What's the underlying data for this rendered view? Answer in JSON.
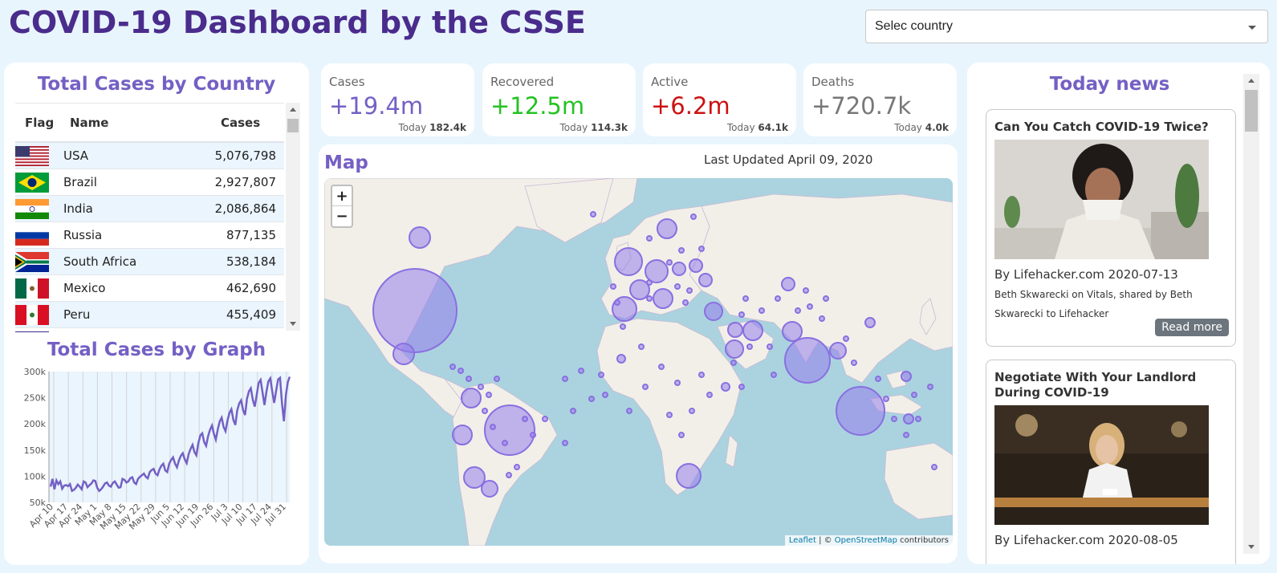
{
  "header": {
    "title": "COVID-19 Dashboard by the CSSE",
    "country_select": {
      "value": "Selec country",
      "caret_icon": "chevron-down-icon"
    }
  },
  "colors": {
    "title": "#4a2c8c",
    "accent": "#7460c4",
    "recovered": "#23c223",
    "active": "#cc1111",
    "deaths": "#777777",
    "bubble": "#9b86e6"
  },
  "country_table": {
    "title": "Total Cases by Country",
    "columns": {
      "flag": "Flag",
      "name": "Name",
      "cases": "Cases"
    },
    "rows": [
      {
        "flag": "flag-usa",
        "name": "USA",
        "cases": "5,076,798"
      },
      {
        "flag": "flag-brazil",
        "name": "Brazil",
        "cases": "2,927,807"
      },
      {
        "flag": "flag-india",
        "name": "India",
        "cases": "2,086,864"
      },
      {
        "flag": "flag-russia",
        "name": "Russia",
        "cases": "877,135"
      },
      {
        "flag": "flag-south-africa",
        "name": "South Africa",
        "cases": "538,184"
      },
      {
        "flag": "flag-mexico",
        "name": "Mexico",
        "cases": "462,690"
      },
      {
        "flag": "flag-peru",
        "name": "Peru",
        "cases": "455,409"
      }
    ]
  },
  "graph": {
    "title": "Total Cases by Graph"
  },
  "chart_data": {
    "type": "line",
    "title": "Total Cases by Graph",
    "x_ticks": [
      "Apr 10",
      "Apr 17",
      "Apr 24",
      "May 1",
      "May 8",
      "May 15",
      "May 22",
      "May 29",
      "Jun 5",
      "Jun 12",
      "Jun 19",
      "Jun 26",
      "Jul 3",
      "Jul 10",
      "Jul 17",
      "Jul 24",
      "Jul 31"
    ],
    "y_ticks": [
      "300k",
      "250k",
      "200k",
      "150k",
      "100k",
      "50k"
    ],
    "ylim": [
      50000,
      300000
    ],
    "grid": "vertical",
    "series": [
      {
        "values": [
          80000,
          95000,
          75000,
          92000,
          85000,
          90000,
          76000,
          82000,
          83000,
          81000,
          85000,
          72000,
          74000,
          78000,
          84000,
          80000,
          75000,
          90000,
          88000,
          79000,
          83000,
          86000,
          92000,
          91000,
          78000,
          72000,
          75000,
          80000,
          86000,
          88000,
          82000,
          80000,
          87000,
          90000,
          84000,
          78000,
          79000,
          95000,
          93000,
          88000,
          90000,
          96000,
          98000,
          88000,
          85000,
          95000,
          99000,
          102000,
          105000,
          99000,
          96000,
          108000,
          112000,
          114000,
          105000,
          102000,
          113000,
          120000,
          124000,
          111000,
          108000,
          124000,
          131000,
          136000,
          124000,
          117000,
          130000,
          139000,
          144000,
          132000,
          125000,
          142000,
          152000,
          160000,
          146000,
          140000,
          163000,
          178000,
          182000,
          165000,
          158000,
          176000,
          189000,
          197000,
          181000,
          170000,
          190000,
          205000,
          212000,
          194000,
          186000,
          207000,
          221000,
          228000,
          208000,
          198000,
          226000,
          239000,
          245000,
          226000,
          217000,
          248000,
          262000,
          268000,
          246000,
          233000,
          255000,
          278000,
          284000,
          260000,
          236000,
          261000,
          281000,
          287000,
          262000,
          240000,
          263000,
          285000,
          288000,
          240000,
          205000,
          255000,
          280000,
          290000
        ]
      }
    ]
  },
  "stats": [
    {
      "label": "Cases",
      "value": "+19.4m",
      "today_label": "Today",
      "today_value": "182.4k",
      "color": "#7460c4"
    },
    {
      "label": "Recovered",
      "value": "+12.5m",
      "today_label": "Today",
      "today_value": "114.3k",
      "color": "#23c223"
    },
    {
      "label": "Active",
      "value": "+6.2m",
      "today_label": "Today",
      "today_value": "64.1k",
      "color": "#cc1111"
    },
    {
      "label": "Deaths",
      "value": "+720.7k",
      "today_label": "Today",
      "today_value": "4.0k",
      "color": "#777777"
    }
  ],
  "map": {
    "title": "Map",
    "last_updated": "Last Updated April 09, 2020",
    "zoom_in": "+",
    "zoom_out": "−",
    "attribution": {
      "leaflet": "Leaflet",
      "separator": " | © ",
      "osm": "OpenStreetMap",
      "suffix": " contributors"
    }
  },
  "news": {
    "title": "Today news",
    "items": [
      {
        "title": "Can You Catch COVID-19 Twice?",
        "image": "woman-sneezing-photo",
        "source": "By Lifehacker.com 2020-07-13",
        "description": "Beth Skwarecki on Vitals, shared by Beth Skwarecki to Lifehacker",
        "read_more": "Read more"
      },
      {
        "title": "Negotiate With Your Landlord During COVID-19",
        "image": "woman-on-phone-photo",
        "source": "By Lifehacker.com 2020-08-05",
        "description": "",
        "read_more": ""
      }
    ]
  }
}
